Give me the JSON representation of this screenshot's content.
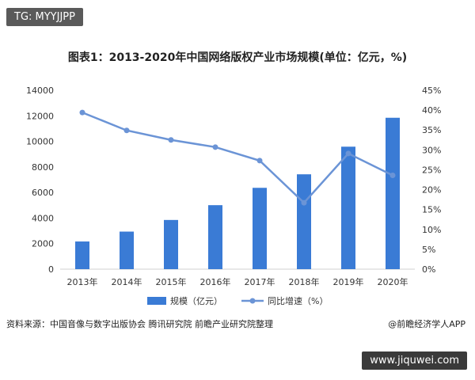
{
  "badge": "TG: MYYJJPP",
  "source": "资料来源：中国音像与数字出版协会 腾讯研究院 前瞻产业研究院整理",
  "credit": "@前瞻经济学人APP",
  "watermark": "www.jiquwei.com",
  "chart_data": {
    "type": "bar",
    "title": "图表1：2013-2020年中国网络版权产业市场规模(单位：亿元，%)",
    "categories": [
      "2013年",
      "2014年",
      "2015年",
      "2016年",
      "2017年",
      "2018年",
      "2019年",
      "2020年"
    ],
    "series": [
      {
        "name": "规模（亿元）",
        "type": "bar",
        "axis": "left",
        "color": "#3a7bd5",
        "values": [
          2166,
          2940,
          3850,
          5008,
          6365,
          7423,
          9584,
          11847
        ]
      },
      {
        "name": "同比增速（%）",
        "type": "line",
        "axis": "right",
        "color": "#6b94d6",
        "values": [
          39.4,
          34.9,
          32.5,
          30.7,
          27.3,
          16.7,
          29.1,
          23.6
        ]
      }
    ],
    "yleft": {
      "lim": [
        0,
        14000
      ],
      "ticks": [
        "0",
        "2000",
        "4000",
        "6000",
        "8000",
        "10000",
        "12000",
        "14000"
      ]
    },
    "yright": {
      "lim": [
        0,
        45
      ],
      "ticks": [
        "0%",
        "5%",
        "10%",
        "15%",
        "20%",
        "25%",
        "30%",
        "35%",
        "40%",
        "45%"
      ]
    },
    "legend": "bottom",
    "grid": false
  }
}
